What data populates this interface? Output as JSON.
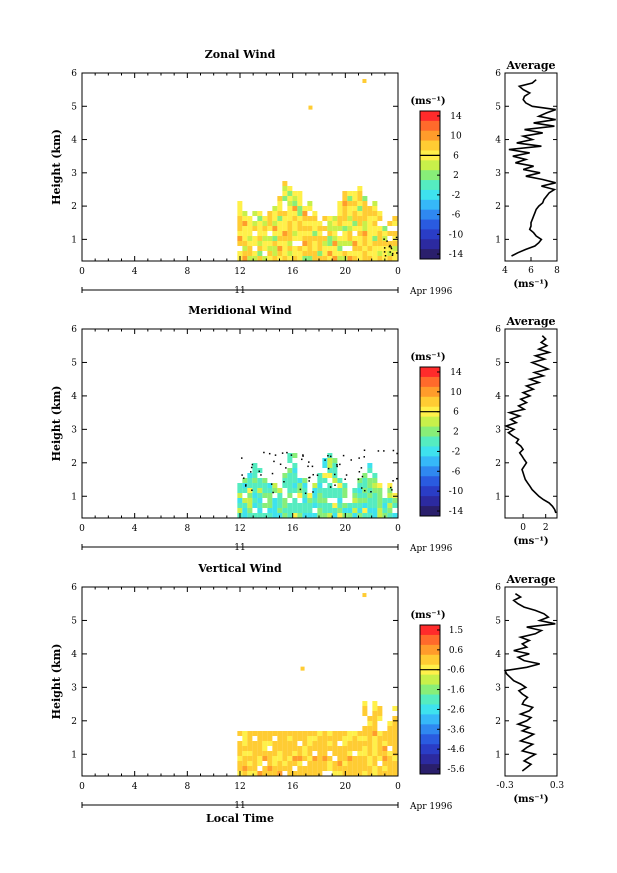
{
  "figure": {
    "x_axis_label": "Local Time",
    "month_label": "Apr 1996",
    "day_label": "11",
    "time_ticks": [
      "0",
      "4",
      "8",
      "12",
      "16",
      "20",
      "0"
    ],
    "average_title": "Average"
  },
  "chart_data": [
    {
      "type": "heatmap",
      "title": "Zonal Wind",
      "ylabel": "Height (km)",
      "y_ticks": [
        "1",
        "2",
        "3",
        "4",
        "5",
        "6"
      ],
      "ylim": [
        0.35,
        6
      ],
      "xlim": [
        0,
        24
      ],
      "data_start_hour": 11.8,
      "colorbar_unit": "(ms⁻¹)",
      "colorbar_ticks": [
        "14",
        "10",
        "6",
        "2",
        "-2",
        "-6",
        "-10",
        "-14"
      ],
      "colorbar_colors": [
        "#ff2b2b",
        "#ff6a2b",
        "#ff9c2b",
        "#ffcc33",
        "#fff04a",
        "#c8f04a",
        "#88ee78",
        "#55ecc0",
        "#3ee2ee",
        "#36b8f8",
        "#2f88f0",
        "#2a5be0",
        "#2a3dc6",
        "#2c2aa0",
        "#2a1f6c"
      ],
      "profile": {
        "title": "Average",
        "x_ticks": [
          "4",
          "6",
          "8"
        ],
        "xlim": [
          4,
          8
        ],
        "xlabel": "(ms⁻¹)",
        "heights": [
          0.5,
          0.6,
          0.7,
          0.8,
          0.9,
          1.0,
          1.1,
          1.2,
          1.3,
          1.4,
          1.5,
          1.6,
          1.7,
          1.8,
          1.9,
          2.0,
          2.1,
          2.2,
          2.3,
          2.4,
          2.5,
          2.6,
          2.7,
          2.8,
          2.9,
          3.0,
          3.1,
          3.2,
          3.3,
          3.4,
          3.5,
          3.6,
          3.7,
          3.8,
          3.9,
          4.0,
          4.1,
          4.2,
          4.3,
          4.4,
          4.5,
          4.6,
          4.7,
          4.8,
          4.9,
          5.0,
          5.1,
          5.2,
          5.3,
          5.4,
          5.5,
          5.6,
          5.7,
          5.8
        ],
        "values": [
          4.5,
          5.0,
          5.6,
          6.3,
          6.6,
          6.8,
          6.4,
          6.2,
          5.9,
          6.0,
          6.0,
          6.1,
          6.2,
          6.3,
          6.4,
          6.6,
          6.9,
          7.0,
          7.2,
          7.4,
          7.8,
          6.8,
          7.9,
          6.9,
          5.6,
          6.7,
          5.4,
          6.2,
          4.8,
          5.6,
          4.6,
          5.9,
          4.3,
          6.8,
          4.9,
          6.1,
          5.4,
          6.9,
          5.5,
          7.8,
          6.2,
          7.9,
          6.6,
          7.2,
          7.9,
          6.1,
          5.6,
          5.4,
          5.5,
          5.9,
          5.4,
          5.1,
          6.1,
          6.4
        ]
      }
    },
    {
      "type": "heatmap",
      "title": "Meridional Wind",
      "ylabel": "Height (km)",
      "y_ticks": [
        "1",
        "2",
        "3",
        "4",
        "5",
        "6"
      ],
      "ylim": [
        0.35,
        6
      ],
      "xlim": [
        0,
        24
      ],
      "data_start_hour": 11.8,
      "colorbar_unit": "(ms⁻¹)",
      "colorbar_ticks": [
        "14",
        "10",
        "6",
        "2",
        "-2",
        "-6",
        "-10",
        "-14"
      ],
      "colorbar_colors": [
        "#ff2b2b",
        "#ff6a2b",
        "#ff9c2b",
        "#ffcc33",
        "#fff04a",
        "#c8f04a",
        "#88ee78",
        "#55ecc0",
        "#3ee2ee",
        "#36b8f8",
        "#2f88f0",
        "#2a5be0",
        "#2a3dc6",
        "#2c2aa0",
        "#2a1f6c"
      ],
      "profile": {
        "title": "Average",
        "x_ticks": [
          "0",
          "2"
        ],
        "xlim": [
          -1.6,
          3
        ],
        "xlabel": "(ms⁻¹)",
        "heights": [
          0.5,
          0.6,
          0.7,
          0.8,
          0.9,
          1.0,
          1.1,
          1.2,
          1.3,
          1.4,
          1.5,
          1.6,
          1.7,
          1.8,
          1.9,
          2.0,
          2.1,
          2.2,
          2.3,
          2.4,
          2.5,
          2.6,
          2.7,
          2.8,
          2.9,
          3.0,
          3.1,
          3.2,
          3.3,
          3.4,
          3.5,
          3.6,
          3.7,
          3.8,
          3.9,
          4.0,
          4.1,
          4.2,
          4.3,
          4.4,
          4.5,
          4.6,
          4.7,
          4.8,
          4.9,
          5.0,
          5.1,
          5.2,
          5.3,
          5.4,
          5.5,
          5.6,
          5.7,
          5.8
        ],
        "values": [
          2.9,
          2.8,
          2.6,
          2.3,
          1.8,
          1.4,
          1.1,
          0.8,
          0.6,
          0.4,
          0.2,
          0.1,
          0.0,
          -0.1,
          0.1,
          0.3,
          0.1,
          -0.1,
          -0.3,
          0.0,
          -0.2,
          -0.6,
          -0.4,
          -0.9,
          -1.3,
          -0.8,
          -1.5,
          -0.6,
          -1.1,
          -0.3,
          -1.2,
          0.1,
          -0.4,
          0.3,
          -0.2,
          0.6,
          0.0,
          0.9,
          0.3,
          1.4,
          0.6,
          1.8,
          1.0,
          2.2,
          1.5,
          0.8,
          1.9,
          1.1,
          2.3,
          1.4,
          2.1,
          1.6,
          2.0,
          1.7
        ]
      }
    },
    {
      "type": "heatmap",
      "title": "Vertical Wind",
      "ylabel": "Height (km)",
      "y_ticks": [
        "1",
        "2",
        "3",
        "4",
        "5",
        "6"
      ],
      "ylim": [
        0.35,
        6
      ],
      "xlim": [
        0,
        24
      ],
      "data_start_hour": 11.8,
      "colorbar_unit": "(ms⁻¹)",
      "colorbar_ticks": [
        "1.5",
        "0.6",
        "-0.6",
        "-1.6",
        "-2.6",
        "-3.6",
        "-4.6",
        "-5.6"
      ],
      "colorbar_colors": [
        "#ff2b2b",
        "#ff6a2b",
        "#ff9c2b",
        "#ffcc33",
        "#fff04a",
        "#c8f04a",
        "#88ee78",
        "#55ecc0",
        "#3ee2ee",
        "#36b8f8",
        "#2f88f0",
        "#2a5be0",
        "#2a3dc6",
        "#2c2aa0",
        "#2a1f6c"
      ],
      "profile": {
        "title": "Average",
        "x_ticks": [
          "-0.3",
          "0.3"
        ],
        "xlim": [
          -0.3,
          0.3
        ],
        "xlabel": "(ms⁻¹)",
        "heights": [
          0.5,
          0.6,
          0.7,
          0.8,
          0.9,
          1.0,
          1.1,
          1.2,
          1.3,
          1.4,
          1.5,
          1.6,
          1.7,
          1.8,
          1.9,
          2.0,
          2.1,
          2.2,
          2.3,
          2.4,
          2.5,
          2.6,
          2.7,
          2.8,
          2.9,
          3.0,
          3.1,
          3.2,
          3.3,
          3.4,
          3.5,
          3.6,
          3.7,
          3.8,
          3.9,
          4.0,
          4.1,
          4.2,
          4.3,
          4.4,
          4.5,
          4.6,
          4.7,
          4.8,
          4.9,
          5.0,
          5.1,
          5.2,
          5.3,
          5.4,
          5.5,
          5.6,
          5.7,
          5.8
        ],
        "values": [
          -0.1,
          -0.05,
          0.0,
          -0.08,
          -0.02,
          0.05,
          -0.1,
          -0.05,
          0.02,
          -0.12,
          -0.04,
          0.03,
          -0.1,
          -0.02,
          -0.15,
          -0.05,
          0.0,
          -0.12,
          -0.02,
          0.02,
          -0.1,
          -0.08,
          -0.04,
          -0.1,
          -0.14,
          -0.06,
          -0.12,
          -0.2,
          -0.24,
          -0.28,
          -0.3,
          -0.05,
          0.1,
          -0.08,
          -0.15,
          -0.02,
          -0.2,
          -0.05,
          -0.1,
          -0.02,
          -0.12,
          0.05,
          0.12,
          -0.05,
          0.28,
          0.1,
          0.2,
          0.15,
          0.05,
          -0.08,
          -0.15,
          -0.2,
          -0.12,
          -0.18
        ]
      }
    }
  ]
}
